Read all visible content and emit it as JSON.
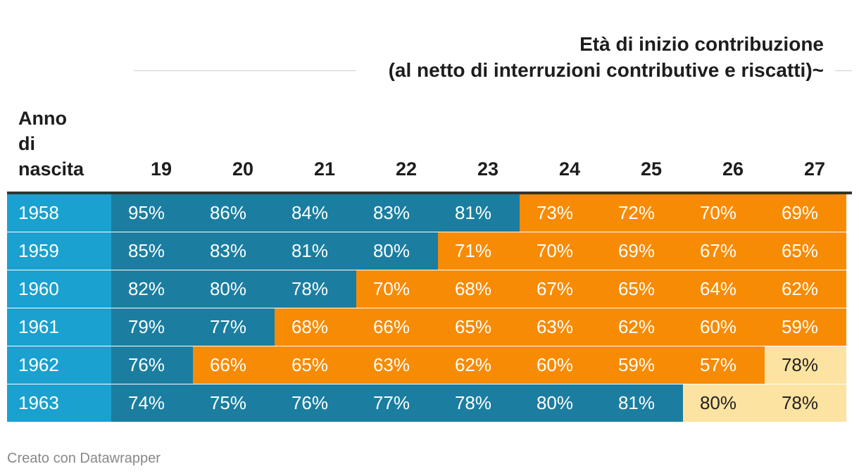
{
  "header": {
    "title_line1": "Età di inizio contribuzione",
    "title_line2": "(al netto di interruzioni contributive e riscatti)~"
  },
  "table": {
    "row_header": "Anno di nascita",
    "row_header_lines": [
      "Anno",
      "di",
      "nascita"
    ]
  },
  "colors": {
    "year_cell": "#1aa1cf",
    "blue_cell": "#1b7ea0",
    "orange_cell": "#f88b04",
    "light_cell": "#fde3a1",
    "text_light": "#ffffff",
    "text_dark": "#222222"
  },
  "chart_data": {
    "type": "table",
    "columns": [
      "19",
      "20",
      "21",
      "22",
      "23",
      "24",
      "25",
      "26",
      "27"
    ],
    "rows": [
      {
        "year": "1958",
        "values": [
          "95%",
          "86%",
          "84%",
          "83%",
          "81%",
          "73%",
          "72%",
          "70%",
          "69%"
        ],
        "colors": [
          "blue",
          "blue",
          "blue",
          "blue",
          "blue",
          "orange",
          "orange",
          "orange",
          "orange"
        ]
      },
      {
        "year": "1959",
        "values": [
          "85%",
          "83%",
          "81%",
          "80%",
          "71%",
          "70%",
          "69%",
          "67%",
          "65%"
        ],
        "colors": [
          "blue",
          "blue",
          "blue",
          "blue",
          "orange",
          "orange",
          "orange",
          "orange",
          "orange"
        ]
      },
      {
        "year": "1960",
        "values": [
          "82%",
          "80%",
          "78%",
          "70%",
          "68%",
          "67%",
          "65%",
          "64%",
          "62%"
        ],
        "colors": [
          "blue",
          "blue",
          "blue",
          "orange",
          "orange",
          "orange",
          "orange",
          "orange",
          "orange"
        ]
      },
      {
        "year": "1961",
        "values": [
          "79%",
          "77%",
          "68%",
          "66%",
          "65%",
          "63%",
          "62%",
          "60%",
          "59%"
        ],
        "colors": [
          "blue",
          "blue",
          "orange",
          "orange",
          "orange",
          "orange",
          "orange",
          "orange",
          "orange"
        ]
      },
      {
        "year": "1962",
        "values": [
          "76%",
          "66%",
          "65%",
          "63%",
          "62%",
          "60%",
          "59%",
          "57%",
          "78%"
        ],
        "colors": [
          "blue",
          "orange",
          "orange",
          "orange",
          "orange",
          "orange",
          "orange",
          "orange",
          "light"
        ]
      },
      {
        "year": "1963",
        "values": [
          "74%",
          "75%",
          "76%",
          "77%",
          "78%",
          "80%",
          "81%",
          "80%",
          "78%"
        ],
        "colors": [
          "blue",
          "blue",
          "blue",
          "blue",
          "blue",
          "blue",
          "blue",
          "light",
          "light"
        ]
      }
    ]
  },
  "footer": {
    "credit": "Creato con Datawrapper"
  }
}
